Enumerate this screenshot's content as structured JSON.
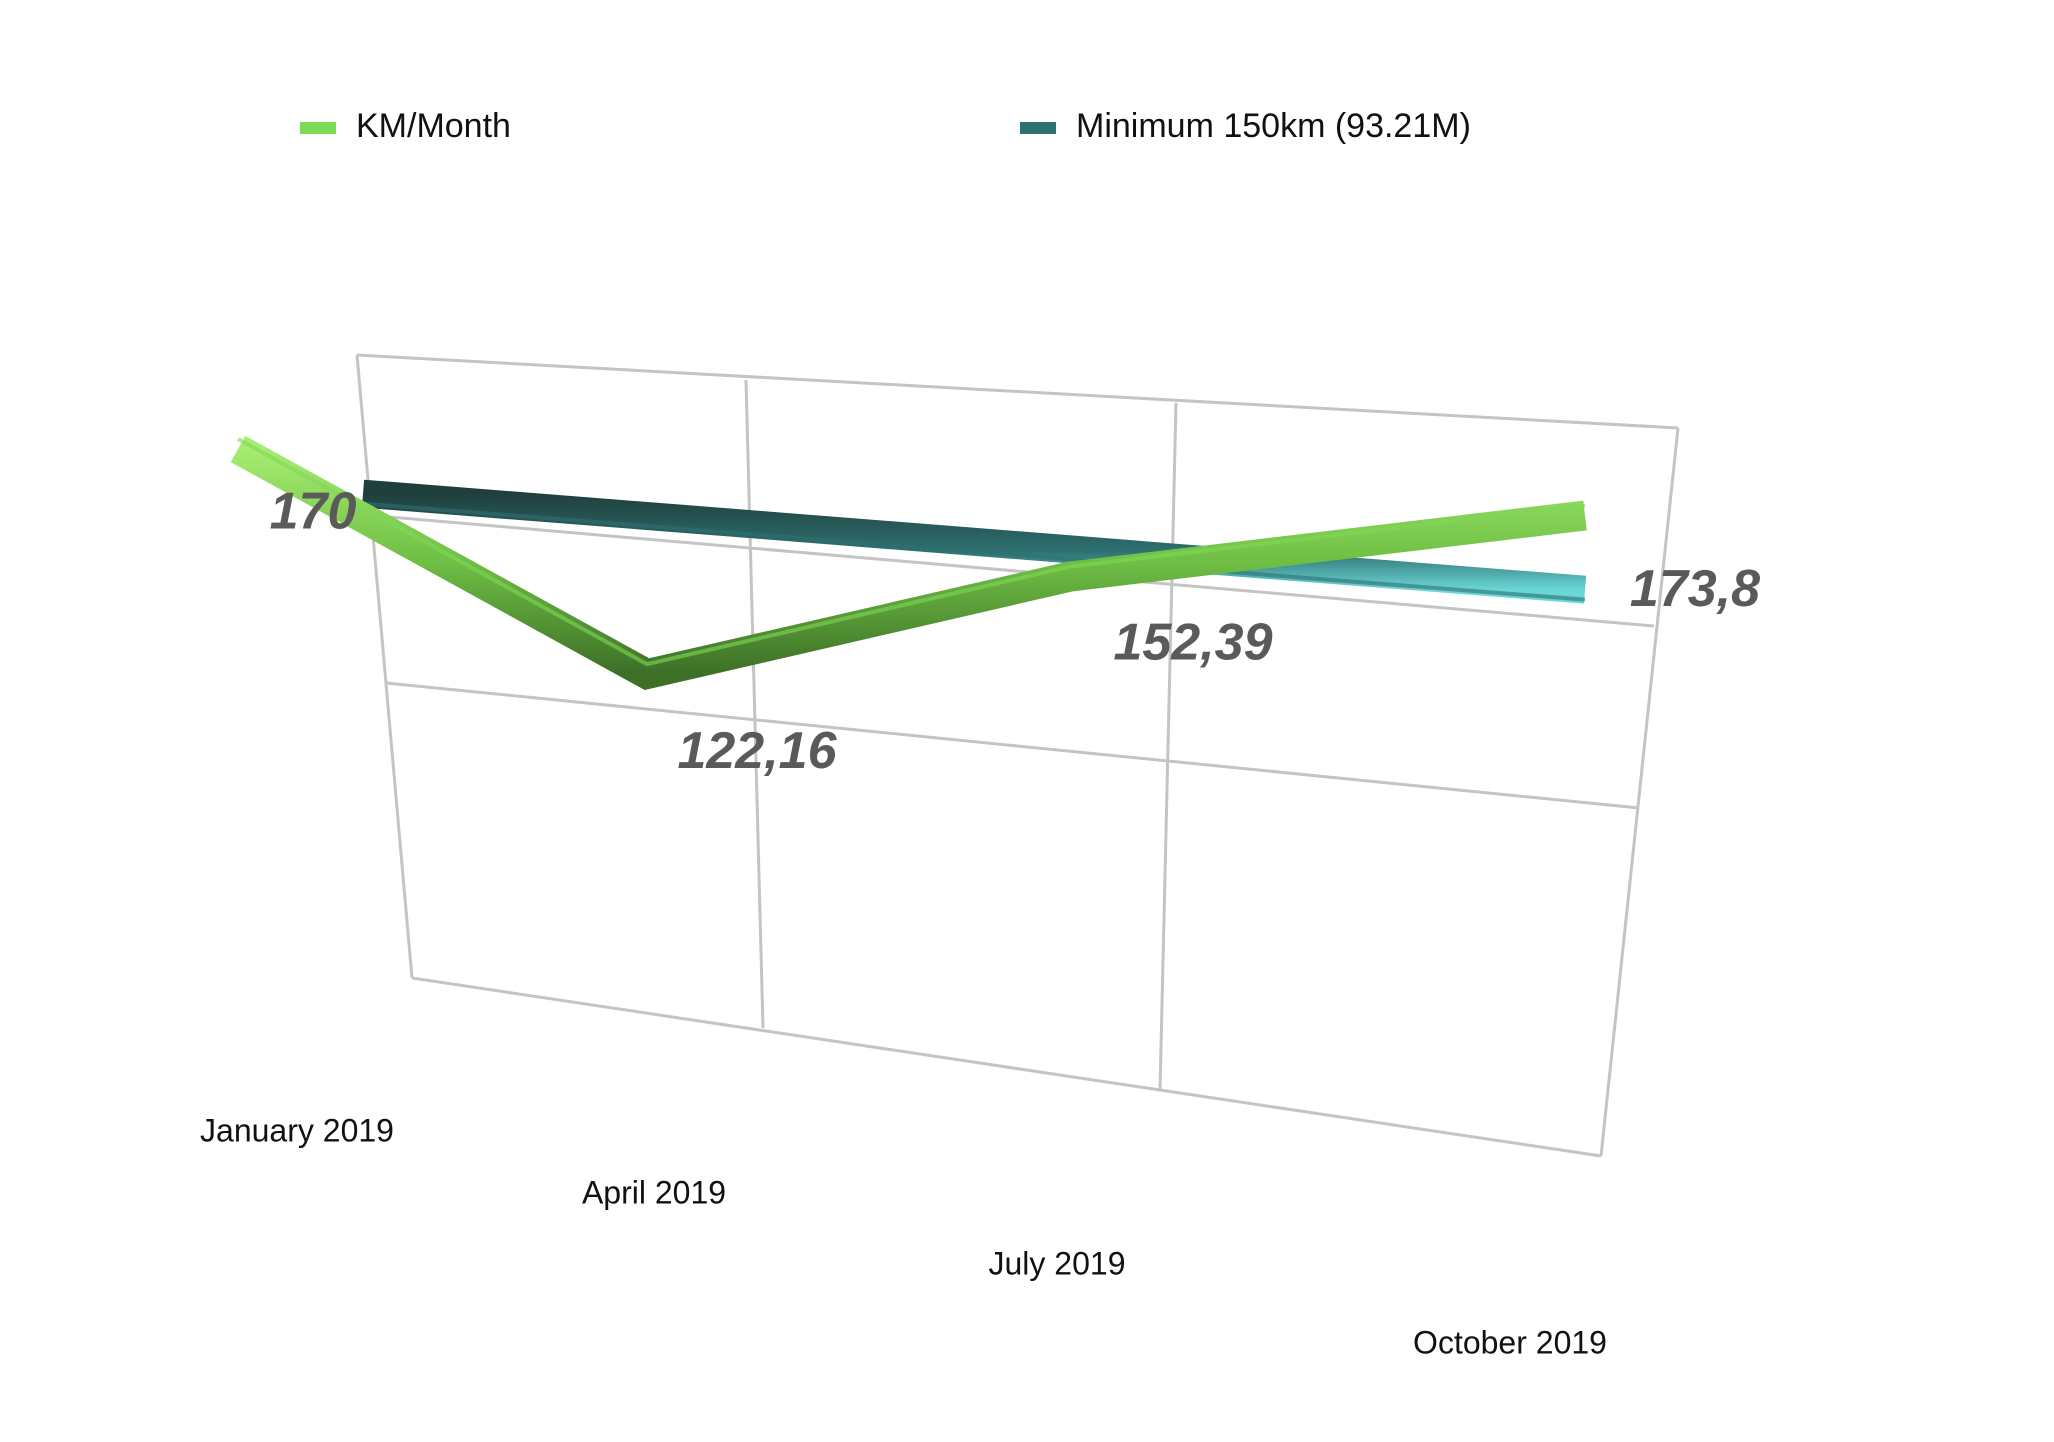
{
  "chart_data": {
    "type": "line",
    "categories": [
      "January 2019",
      "April 2019",
      "July 2019",
      "October 2019"
    ],
    "series": [
      {
        "name": "KM/Month",
        "color": "#7ed957",
        "values": [
          170,
          122.16,
          152.39,
          173.8
        ],
        "value_labels": [
          "170",
          "122,16",
          "152,39",
          "173,8"
        ]
      },
      {
        "name": "Minimum 150km (93.21M)",
        "color": "#2e7070",
        "values": [
          150,
          150,
          150,
          150
        ]
      }
    ],
    "ylim": [
      50,
      200
    ]
  }
}
